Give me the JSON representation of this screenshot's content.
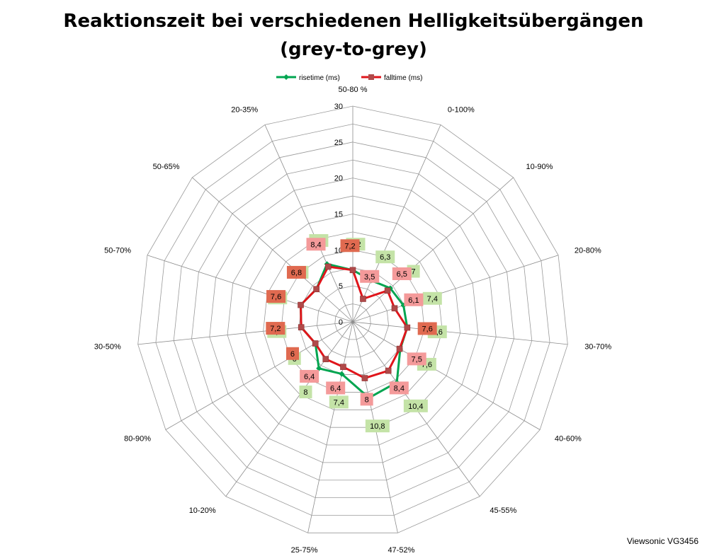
{
  "chart_data": {
    "type": "radar",
    "title_line1": "Reaktionszeit bei verschiedenen Helligkeitsübergängen",
    "title_line2": "(grey-to-grey)",
    "categories": [
      "50-80 %",
      "0-100%",
      "10-90%",
      "20-80%",
      "30-70%",
      "40-60%",
      "45-55%",
      "47-52%",
      "25-75%",
      "10-20%",
      "80-90%",
      "30-50%",
      "50-70%",
      "50-65%",
      "20-35%"
    ],
    "rlim": [
      0,
      30
    ],
    "ticks": [
      "0",
      "5",
      "10",
      "15",
      "20",
      "25",
      "30"
    ],
    "tick_values": [
      0,
      5,
      10,
      15,
      20,
      25,
      30
    ],
    "legend_position": "top",
    "series": [
      {
        "name": "risetime (ms)",
        "color": "#00a550",
        "label_bg": "#c4e3a7",
        "marker": "diamond",
        "values": [
          7.2,
          6.3,
          7,
          7.4,
          7.6,
          7.6,
          10.4,
          10.8,
          7.4,
          8,
          6,
          7.2,
          7.6,
          6.8,
          8.8
        ],
        "labels": [
          "7,2",
          "6,3",
          "7",
          "7,4",
          "7,6",
          "7,6",
          "10,4",
          "10,8",
          "7,4",
          "8",
          "6",
          "7,2",
          "7,6",
          "6,8",
          "8,8"
        ]
      },
      {
        "name": "falltime (ms)",
        "color": "#e0151b",
        "label_bg": "#f49a9a",
        "marker": "square",
        "values": [
          7.2,
          3.5,
          6.5,
          6.1,
          7.6,
          7.5,
          8.4,
          8,
          6.4,
          6.4,
          6,
          7.2,
          7.6,
          6.8,
          8.4
        ],
        "labels": [
          "7,2",
          "3,5",
          "6,5",
          "6,1",
          "7,6",
          "7,5",
          "8,4",
          "8",
          "6,4",
          "6,4",
          "6",
          "7,2",
          "7,6",
          "6,8",
          "8,4"
        ]
      }
    ]
  },
  "watermark": "Viewsonic VG3456"
}
